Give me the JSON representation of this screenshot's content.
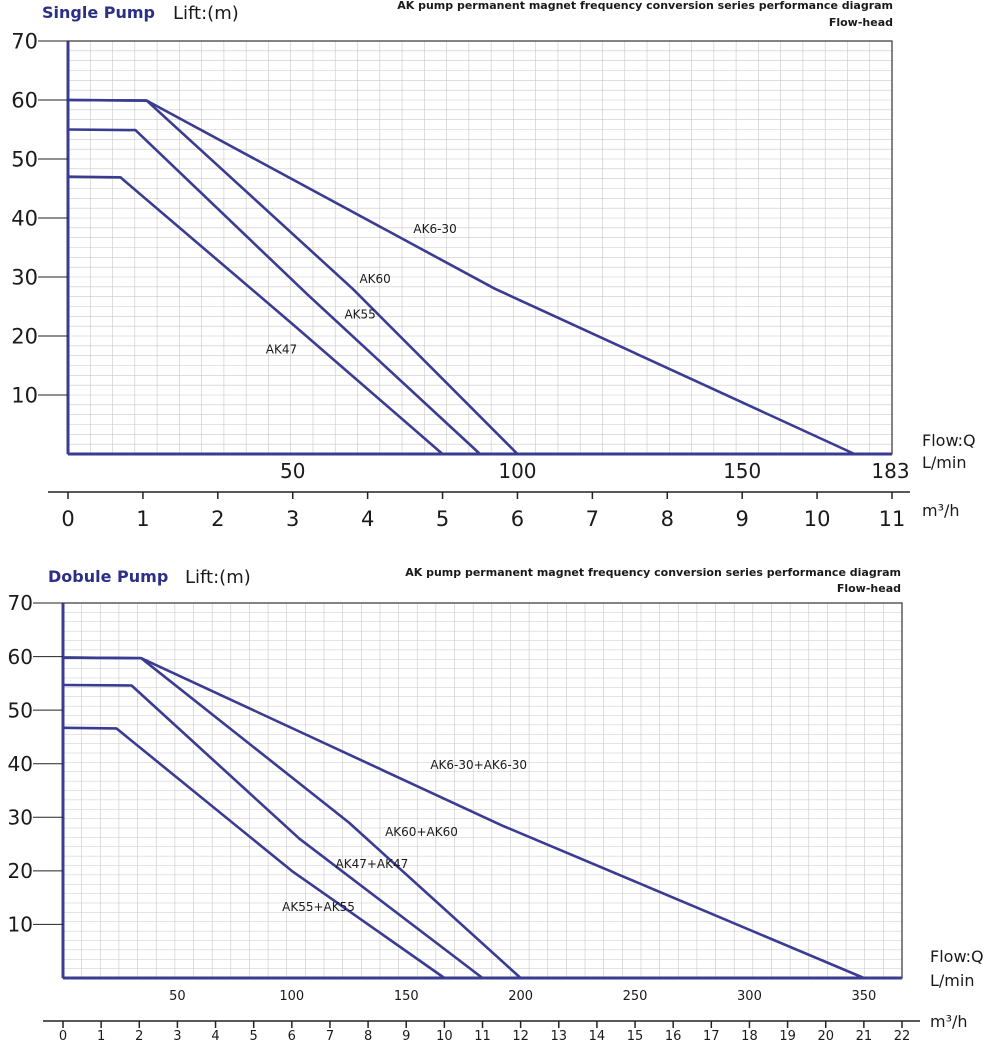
{
  "chart_data": [
    {
      "type": "line",
      "chart_label": "Single Pump",
      "ylabel": "Lift:(m)",
      "title": "AK pump permanent magnet frequency conversion series performance diagram",
      "subtitle": "Flow-head",
      "xlabel_top": "Flow:Q",
      "xunit_top": "L/min",
      "xunit_bottom": "m³/h",
      "ylim": [
        0,
        70
      ],
      "xlim": [
        0,
        11
      ],
      "y_ticks": [
        "10",
        "20",
        "30",
        "40",
        "50",
        "60",
        "70"
      ],
      "x_ticks_m3h": [
        "0",
        "1",
        "2",
        "3",
        "4",
        "5",
        "6",
        "7",
        "8",
        "9",
        "10",
        "11"
      ],
      "x_ticks_lmin": [
        {
          "label": "50",
          "value": 50
        },
        {
          "label": "100",
          "value": 100
        },
        {
          "label": "150",
          "value": 150
        },
        {
          "label": "183",
          "value": 183
        }
      ],
      "series": [
        {
          "name": "AK6-30",
          "color": "#3a3c92",
          "label_at": [
            4.9,
            37.5
          ],
          "points": [
            [
              0,
              60
            ],
            [
              1.05,
              59.9
            ],
            [
              5.7,
              28
            ],
            [
              10.5,
              0
            ]
          ]
        },
        {
          "name": "AK60",
          "color": "#3a3c92",
          "label_at": [
            4.1,
            29
          ],
          "points": [
            [
              0,
              60
            ],
            [
              1.05,
              59.9
            ],
            [
              3.8,
              28
            ],
            [
              6.0,
              0
            ]
          ]
        },
        {
          "name": "AK55",
          "color": "#3a3c92",
          "label_at": [
            3.9,
            23
          ],
          "points": [
            [
              0,
              55
            ],
            [
              0.9,
              54.9
            ],
            [
              3.2,
              27
            ],
            [
              5.5,
              0
            ]
          ]
        },
        {
          "name": "AK47",
          "color": "#3a3c92",
          "label_at": [
            2.85,
            17
          ],
          "points": [
            [
              0,
              47
            ],
            [
              0.7,
              46.9
            ],
            [
              3.0,
              22
            ],
            [
              5.0,
              0
            ]
          ]
        }
      ]
    },
    {
      "type": "line",
      "chart_label": "Dobule Pump",
      "ylabel": "Lift:(m)",
      "title": "AK pump permanent magnet frequency conversion series performance diagram",
      "subtitle": "Flow-head",
      "xlabel_top": "Flow:Q",
      "xunit_top": "L/min",
      "xunit_bottom": "m³/h",
      "ylim": [
        0,
        70
      ],
      "xlim": [
        0,
        22
      ],
      "y_ticks": [
        "10",
        "20",
        "30",
        "40",
        "50",
        "60",
        "70"
      ],
      "x_ticks_m3h": [
        "0",
        "1",
        "2",
        "3",
        "4",
        "5",
        "6",
        "7",
        "8",
        "9",
        "10",
        "11",
        "12",
        "13",
        "14",
        "15",
        "16",
        "17",
        "18",
        "19",
        "20",
        "21",
        "22"
      ],
      "x_ticks_lmin": [
        {
          "label": "50",
          "value": 50
        },
        {
          "label": "100",
          "value": 100
        },
        {
          "label": "150",
          "value": 150
        },
        {
          "label": "200",
          "value": 200
        },
        {
          "label": "250",
          "value": 250
        },
        {
          "label": "300",
          "value": 300
        },
        {
          "label": "350",
          "value": 350
        }
      ],
      "series": [
        {
          "name": "AK6-30+AK6-30",
          "color": "#3a3c92",
          "label_at": [
            10.9,
            39
          ],
          "points": [
            [
              0,
              59.8
            ],
            [
              2.05,
              59.7
            ],
            [
              11.5,
              28.5
            ],
            [
              21.0,
              0
            ]
          ]
        },
        {
          "name": "AK60+AK60",
          "color": "#3a3c92",
          "label_at": [
            9.4,
            26.5
          ],
          "points": [
            [
              0,
              59.8
            ],
            [
              2.05,
              59.7
            ],
            [
              7.5,
              29
            ],
            [
              12.0,
              0
            ]
          ]
        },
        {
          "name": "AK47+AK47",
          "color": "#3a3c92",
          "label_at": [
            8.1,
            20.5
          ],
          "points": [
            [
              0,
              54.7
            ],
            [
              1.8,
              54.6
            ],
            [
              6.2,
              26
            ],
            [
              11.0,
              0
            ]
          ]
        },
        {
          "name": "AK55+AK55",
          "color": "#3a3c92",
          "label_at": [
            6.7,
            12.5
          ],
          "points": [
            [
              0,
              46.7
            ],
            [
              1.4,
              46.6
            ],
            [
              6.0,
              20
            ],
            [
              10.0,
              0
            ]
          ]
        }
      ]
    }
  ]
}
